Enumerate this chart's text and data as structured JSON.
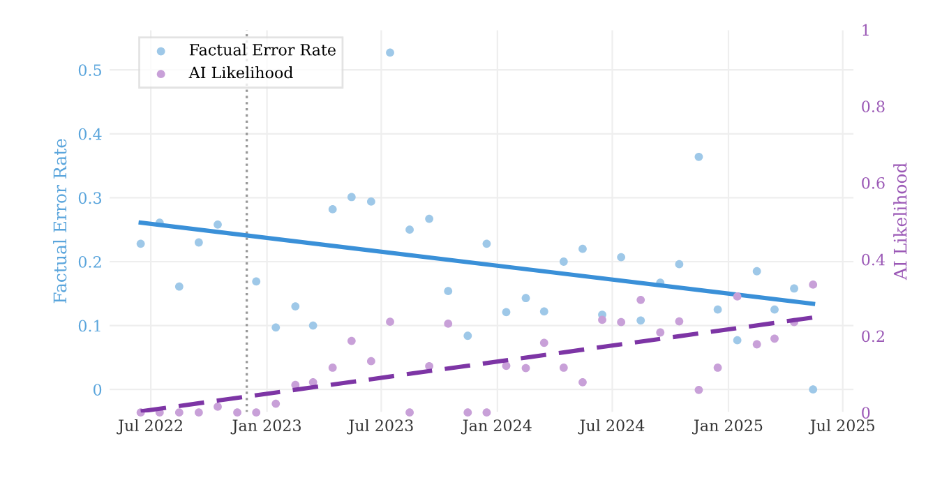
{
  "chart_data": {
    "type": "scatter",
    "xlabel": null,
    "ylabel": "Factual Error Rate",
    "y2label": "AI Likelihood",
    "x": [
      "2022-06-15",
      "2022-07-15",
      "2022-08-15",
      "2022-09-15",
      "2022-10-15",
      "2022-11-15",
      "2022-12-15",
      "2023-01-15",
      "2023-02-15",
      "2023-03-15",
      "2023-04-15",
      "2023-05-15",
      "2023-06-15",
      "2023-07-15",
      "2023-08-15",
      "2023-09-15",
      "2023-10-15",
      "2023-11-15",
      "2023-12-15",
      "2024-01-15",
      "2024-02-15",
      "2024-03-15",
      "2024-04-15",
      "2024-05-15",
      "2024-06-15",
      "2024-07-15",
      "2024-08-15",
      "2024-09-15",
      "2024-10-15",
      "2024-11-15",
      "2024-12-15",
      "2025-01-15",
      "2025-02-15",
      "2025-03-15",
      "2025-04-15",
      "2025-05-15"
    ],
    "series": [
      {
        "name": "Factual Error Rate",
        "color": "#9ec8e8",
        "marker": "circle",
        "values": [
          0.228,
          0.261,
          0.161,
          0.23,
          0.258,
          null,
          0.169,
          0.097,
          0.13,
          0.1,
          0.282,
          0.301,
          0.294,
          0.527,
          0.25,
          0.267,
          0.154,
          0.084,
          0.228,
          0.121,
          0.143,
          0.122,
          0.2,
          0.22,
          0.117,
          0.207,
          0.108,
          0.167,
          0.196,
          0.364,
          0.125,
          0.077,
          0.185,
          0.125,
          0.158,
          0.0
        ]
      },
      {
        "name": "AI Likelihood",
        "axis": "y2",
        "color": "#c8a0d8",
        "marker": "circle",
        "values": [
          0.0,
          0.0,
          0.0,
          0.0,
          0.015,
          0.0,
          0.0,
          0.023,
          0.072,
          0.079,
          0.117,
          0.187,
          0.134,
          0.237,
          0.0,
          0.121,
          0.232,
          0.0,
          0.0,
          0.122,
          0.116,
          0.182,
          0.117,
          0.079,
          0.242,
          0.236,
          0.294,
          0.209,
          0.238,
          0.059,
          0.117,
          0.303,
          0.178,
          0.193,
          0.236,
          0.334
        ]
      },
      {
        "type": "line",
        "color": "#3a90d8",
        "line_style": "solid",
        "x": [
          "2022-06-15",
          "2025-05-15"
        ],
        "values": [
          0.261,
          0.134
        ]
      },
      {
        "type": "line",
        "axis": "y2",
        "color": "#7d35a5",
        "line_style": "dashed",
        "x": [
          "2022-06-15",
          "2025-05-15"
        ],
        "values": [
          0.003,
          0.248
        ]
      }
    ],
    "xlim": [
      "2022-04-26",
      "2025-07-19"
    ],
    "xticks": [
      {
        "value": "2022-07-01",
        "label": "Jul 2022"
      },
      {
        "value": "2023-01-01",
        "label": "Jan 2023"
      },
      {
        "value": "2023-07-01",
        "label": "Jul 2023"
      },
      {
        "value": "2024-01-01",
        "label": "Jan 2024"
      },
      {
        "value": "2024-07-01",
        "label": "Jul 2024"
      },
      {
        "value": "2025-01-01",
        "label": "Jan 2025"
      },
      {
        "value": "2025-07-01",
        "label": "Jul 2025"
      }
    ],
    "ylim": [
      -0.036,
      0.563
    ],
    "yticks": [
      0,
      0.1,
      0.2,
      0.3,
      0.4,
      0.5
    ],
    "y2lim": [
      0,
      1
    ],
    "y2ticks": [
      0,
      0.2,
      0.4,
      0.6,
      0.8,
      1
    ],
    "ref_lines": [
      {
        "axis": "x",
        "value": "2022-11-30",
        "color": "#999999",
        "line_style": "dotted"
      }
    ],
    "grid": true,
    "legend": "top left"
  }
}
